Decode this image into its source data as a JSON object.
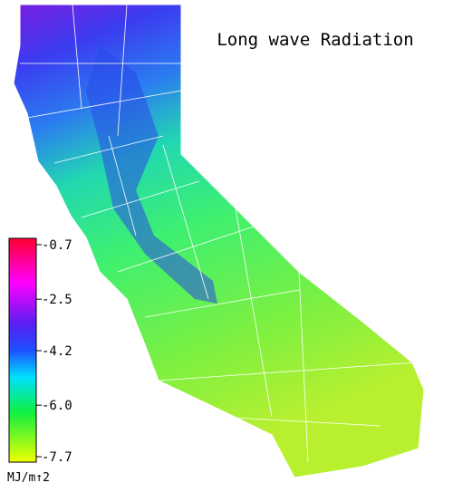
{
  "title": "Long wave Radiation",
  "colorbar": {
    "ticks": [
      -0.7,
      -2.5,
      -4.2,
      {
        "value": -6,
        "label": "-6.0"
      },
      -7.7
    ],
    "unit": "MJ/m↑2"
  }
}
